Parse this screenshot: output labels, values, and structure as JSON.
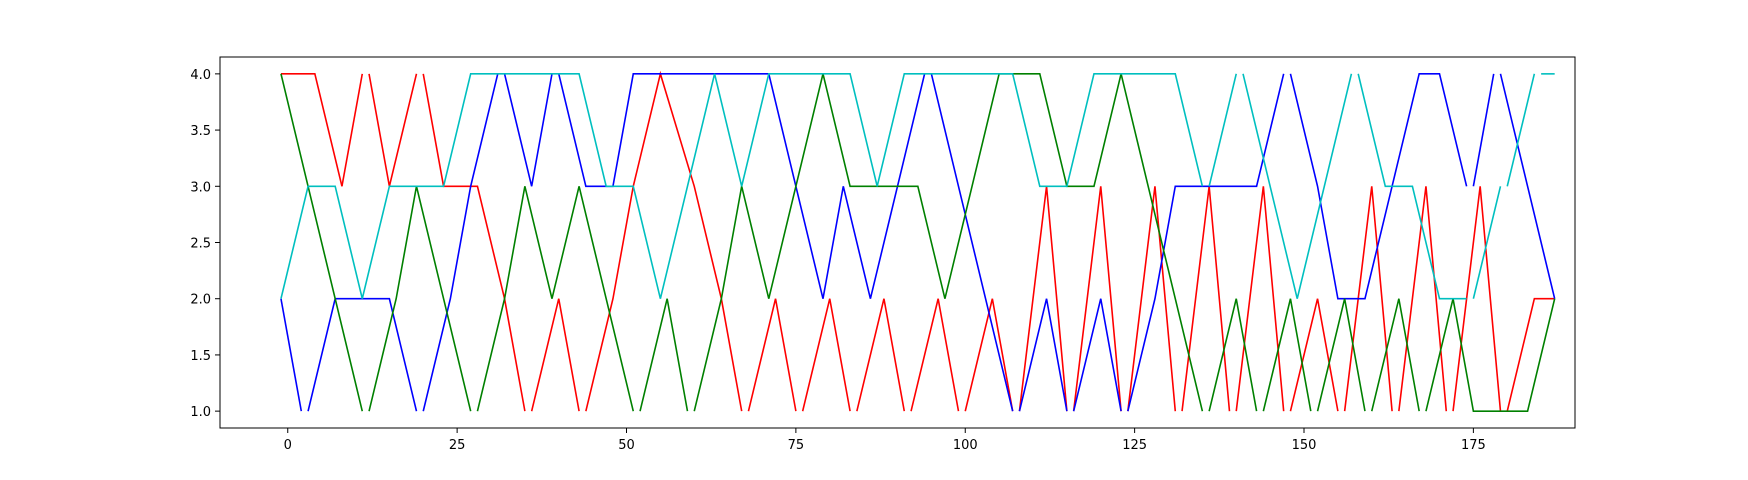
{
  "chart_data": {
    "type": "line",
    "title": "",
    "xlabel": "",
    "ylabel": "",
    "xlim": [
      -10,
      190
    ],
    "ylim": [
      0.85,
      4.15
    ],
    "grid": false,
    "legend": "none",
    "x_ticks": [
      0,
      25,
      50,
      75,
      100,
      125,
      150,
      175
    ],
    "x_tick_labels": [
      "0",
      "25",
      "50",
      "75",
      "100",
      "125",
      "150",
      "175"
    ],
    "y_ticks": [
      1.0,
      1.5,
      2.0,
      2.5,
      3.0,
      3.5,
      4.0
    ],
    "y_tick_labels": [
      "1.0",
      "1.5",
      "2.0",
      "2.5",
      "3.0",
      "3.5",
      "4.0"
    ],
    "series": [
      {
        "color": "#ff0000",
        "segments": [
          [
            [
              -1,
              4
            ],
            [
              4,
              4
            ],
            [
              8,
              3
            ]
          ],
          [
            [
              8,
              3
            ],
            [
              11,
              4
            ]
          ],
          [
            [
              12,
              4
            ],
            [
              15,
              3
            ],
            [
              19,
              4
            ]
          ],
          [
            [
              20,
              4
            ],
            [
              23,
              3
            ],
            [
              28,
              3
            ],
            [
              32,
              2
            ],
            [
              35,
              1
            ]
          ],
          [
            [
              36,
              1
            ],
            [
              40,
              2
            ],
            [
              43,
              1
            ]
          ],
          [
            [
              44,
              1
            ],
            [
              48,
              2
            ],
            [
              51,
              3
            ],
            [
              55,
              4
            ],
            [
              60,
              3
            ],
            [
              64,
              2
            ],
            [
              67,
              1
            ]
          ],
          [
            [
              68,
              1
            ],
            [
              72,
              2
            ],
            [
              75,
              1
            ]
          ],
          [
            [
              76,
              1
            ],
            [
              80,
              2
            ],
            [
              83,
              1
            ]
          ],
          [
            [
              84,
              1
            ],
            [
              88,
              2
            ],
            [
              91,
              1
            ]
          ],
          [
            [
              92,
              1
            ],
            [
              96,
              2
            ],
            [
              99,
              1
            ]
          ],
          [
            [
              100,
              1
            ],
            [
              104,
              2
            ],
            [
              107,
              1
            ]
          ],
          [
            [
              108,
              1
            ],
            [
              112,
              3
            ],
            [
              115,
              1
            ]
          ],
          [
            [
              116,
              1
            ],
            [
              120,
              3
            ],
            [
              123,
              1
            ]
          ],
          [
            [
              124,
              1
            ],
            [
              128,
              3
            ],
            [
              131,
              1
            ]
          ],
          [
            [
              132,
              1
            ],
            [
              136,
              3
            ],
            [
              139,
              1
            ]
          ],
          [
            [
              140,
              1
            ],
            [
              144,
              3
            ],
            [
              147,
              1
            ]
          ],
          [
            [
              148,
              1
            ],
            [
              152,
              2
            ],
            [
              155,
              1
            ]
          ],
          [
            [
              156,
              1
            ],
            [
              160,
              3
            ],
            [
              163,
              1
            ]
          ],
          [
            [
              164,
              1
            ],
            [
              168,
              3
            ],
            [
              171,
              1
            ]
          ],
          [
            [
              172,
              1
            ],
            [
              176,
              3
            ],
            [
              179,
              1
            ]
          ],
          [
            [
              180,
              1
            ],
            [
              184,
              2
            ],
            [
              187,
              2
            ]
          ]
        ]
      },
      {
        "color": "#0000ff",
        "segments": [
          [
            [
              -1,
              2
            ],
            [
              2,
              1
            ]
          ],
          [
            [
              3,
              1
            ],
            [
              7,
              2
            ],
            [
              15,
              2
            ],
            [
              19,
              1
            ]
          ],
          [
            [
              20,
              1
            ],
            [
              24,
              2
            ],
            [
              27,
              3
            ],
            [
              31,
              4
            ]
          ],
          [
            [
              32,
              4
            ],
            [
              36,
              3
            ],
            [
              39,
              4
            ]
          ],
          [
            [
              40,
              4
            ],
            [
              44,
              3
            ],
            [
              48,
              3
            ],
            [
              51,
              4
            ],
            [
              71,
              4
            ],
            [
              75,
              3
            ],
            [
              79,
              2
            ],
            [
              82,
              3
            ],
            [
              86,
              2
            ],
            [
              90,
              3
            ],
            [
              94,
              4
            ]
          ],
          [
            [
              95,
              4
            ],
            [
              99,
              3
            ],
            [
              103,
              2
            ],
            [
              107,
              1
            ]
          ],
          [
            [
              108,
              1
            ],
            [
              112,
              2
            ],
            [
              115,
              1
            ]
          ],
          [
            [
              116,
              1
            ],
            [
              120,
              2
            ],
            [
              123,
              1
            ]
          ],
          [
            [
              124,
              1
            ],
            [
              128,
              2
            ],
            [
              131,
              3
            ],
            [
              143,
              3
            ],
            [
              147,
              4
            ]
          ],
          [
            [
              148,
              4
            ],
            [
              152,
              3
            ],
            [
              155,
              2
            ],
            [
              159,
              2
            ],
            [
              163,
              3
            ],
            [
              167,
              4
            ],
            [
              170,
              4
            ],
            [
              174,
              3
            ]
          ],
          [
            [
              175,
              3
            ],
            [
              178,
              4
            ]
          ],
          [
            [
              179,
              4
            ],
            [
              183,
              3
            ],
            [
              187,
              2
            ]
          ]
        ]
      },
      {
        "color": "#008000",
        "segments": [
          [
            [
              -1,
              4
            ],
            [
              3,
              3
            ],
            [
              7,
              2
            ],
            [
              11,
              1
            ]
          ],
          [
            [
              12,
              1
            ],
            [
              16,
              2
            ],
            [
              19,
              3
            ],
            [
              23,
              2
            ],
            [
              27,
              1
            ]
          ],
          [
            [
              28,
              1
            ],
            [
              32,
              2
            ],
            [
              35,
              3
            ],
            [
              39,
              2
            ],
            [
              43,
              3
            ],
            [
              47,
              2
            ],
            [
              51,
              1
            ]
          ],
          [
            [
              52,
              1
            ],
            [
              56,
              2
            ],
            [
              59,
              1
            ]
          ],
          [
            [
              60,
              1
            ],
            [
              64,
              2
            ],
            [
              67,
              3
            ],
            [
              71,
              2
            ],
            [
              75,
              3
            ],
            [
              79,
              4
            ],
            [
              83,
              3
            ],
            [
              93,
              3
            ],
            [
              97,
              2
            ],
            [
              101,
              3
            ],
            [
              105,
              4
            ],
            [
              111,
              4
            ],
            [
              115,
              3
            ],
            [
              119,
              3
            ],
            [
              123,
              4
            ],
            [
              127,
              3
            ],
            [
              131,
              2
            ],
            [
              135,
              1
            ]
          ],
          [
            [
              136,
              1
            ],
            [
              140,
              2
            ],
            [
              143,
              1
            ]
          ],
          [
            [
              144,
              1
            ],
            [
              148,
              2
            ],
            [
              151,
              1
            ]
          ],
          [
            [
              152,
              1
            ],
            [
              156,
              2
            ],
            [
              159,
              1
            ]
          ],
          [
            [
              160,
              1
            ],
            [
              164,
              2
            ],
            [
              167,
              1
            ]
          ],
          [
            [
              168,
              1
            ],
            [
              172,
              2
            ],
            [
              175,
              1
            ],
            [
              183,
              1
            ],
            [
              187,
              2
            ]
          ]
        ]
      },
      {
        "color": "#00bfbf",
        "segments": [
          [
            [
              -1,
              2
            ],
            [
              3,
              3
            ],
            [
              7,
              3
            ],
            [
              11,
              2
            ],
            [
              15,
              3
            ],
            [
              23,
              3
            ],
            [
              27,
              4
            ],
            [
              43,
              4
            ],
            [
              47,
              3
            ],
            [
              51,
              3
            ],
            [
              55,
              2
            ],
            [
              59,
              3
            ],
            [
              63,
              4
            ],
            [
              67,
              3
            ],
            [
              71,
              4
            ],
            [
              83,
              4
            ],
            [
              87,
              3
            ],
            [
              91,
              4
            ],
            [
              107,
              4
            ],
            [
              111,
              3
            ],
            [
              115,
              3
            ],
            [
              119,
              4
            ],
            [
              131,
              4
            ],
            [
              135,
              3
            ]
          ],
          [
            [
              136,
              3
            ],
            [
              140,
              4
            ]
          ],
          [
            [
              141,
              4
            ],
            [
              145,
              3
            ],
            [
              149,
              2
            ],
            [
              153,
              3
            ],
            [
              157,
              4
            ]
          ],
          [
            [
              158,
              4
            ],
            [
              162,
              3
            ],
            [
              166,
              3
            ],
            [
              170,
              2
            ],
            [
              174,
              2
            ]
          ],
          [
            [
              175,
              2
            ],
            [
              179,
              3
            ]
          ],
          [
            [
              180,
              3
            ],
            [
              184,
              4
            ]
          ],
          [
            [
              185,
              4
            ],
            [
              187,
              4
            ]
          ]
        ]
      }
    ]
  }
}
